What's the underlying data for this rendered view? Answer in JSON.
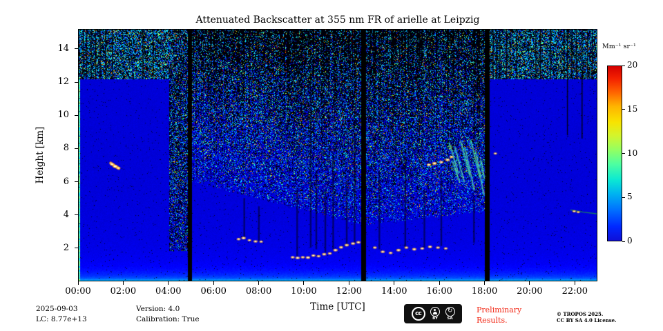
{
  "axes": {
    "x_tick_labels": [
      "00:00",
      "02:00",
      "04:00",
      "06:00",
      "08:00",
      "10:00",
      "12:00",
      "14:00",
      "16:00",
      "18:00",
      "20:00",
      "22:00"
    ],
    "y_tick_labels": [
      "2",
      "4",
      "6",
      "8",
      "10",
      "12",
      "14"
    ]
  },
  "colorbar": {
    "label": "Mm⁻¹ sr⁻¹",
    "tick_labels": [
      "0",
      "5",
      "10",
      "15",
      "20"
    ]
  },
  "footer": {
    "date": "2025-09-03",
    "lc": "LC: 8.77e+13",
    "version": "Version: 4.0",
    "calibration": "Calibration: True",
    "preliminary_line1": "Preliminary",
    "preliminary_line2": "Results.",
    "copyright": "© TROPOS 2025.",
    "license": "CC BY SA 4.0 License.",
    "cc_badge": {
      "cc": "cc",
      "by": "BY",
      "sa": "SA",
      "sa_icon": "↻"
    }
  },
  "chart_data": {
    "type": "heatmap",
    "title": "Attenuated Backscatter at 355 nm FR of arielle at Leipzig",
    "xlabel": "Time [UTC]",
    "ylabel": "Height [km]",
    "x_range_hours": [
      0,
      23
    ],
    "y_range_km": [
      0,
      15.2
    ],
    "x_tick_hours": [
      0,
      2,
      4,
      6,
      8,
      10,
      12,
      14,
      16,
      18,
      20,
      22
    ],
    "y_tick_km": [
      2,
      4,
      6,
      8,
      10,
      12,
      14
    ],
    "colorbar": {
      "label": "Mm⁻¹ sr⁻¹",
      "range": [
        0,
        20
      ],
      "ticks": [
        0,
        5,
        10,
        15,
        20
      ],
      "colormap": "jet"
    },
    "background_value_mm_sr": 0.7,
    "gaps_hours": [
      [
        4.82,
        5.02
      ],
      [
        12.54,
        12.75
      ],
      [
        18.02,
        18.24
      ]
    ],
    "noise_sections": [
      {
        "t0": 0.0,
        "t1": 4.0,
        "base_km": 12.2,
        "style": "dense_top"
      },
      {
        "t0": 4.0,
        "t1": 4.82,
        "base_km": 1.8,
        "style": "column"
      },
      {
        "t0": 5.02,
        "t1": 12.54,
        "base_km": [
          6.0,
          3.4
        ],
        "style": "speckle"
      },
      {
        "t0": 12.75,
        "t1": 18.02,
        "base_km": [
          3.4,
          4.2
        ],
        "style": "speckle"
      },
      {
        "t0": 18.24,
        "t1": 23.0,
        "base_km": 12.2,
        "style": "dense_top"
      }
    ],
    "top_streaks": [
      [
        0.2,
        12.2
      ],
      [
        0.35,
        12.2
      ],
      [
        0.55,
        12.2
      ],
      [
        0.75,
        12.2
      ],
      [
        0.95,
        12.2
      ],
      [
        1.2,
        12.2
      ],
      [
        1.5,
        12.2
      ],
      [
        2.85,
        12.2
      ],
      [
        3.3,
        12.2
      ],
      [
        18.4,
        12.2
      ],
      [
        18.55,
        12.2
      ],
      [
        18.7,
        12.2
      ],
      [
        19.0,
        12.2
      ],
      [
        19.15,
        12.2
      ],
      [
        19.45,
        12.2
      ],
      [
        20.3,
        12.2
      ],
      [
        20.5,
        12.2
      ],
      [
        20.95,
        12.2
      ],
      [
        21.55,
        12.2
      ],
      [
        21.7,
        8.8
      ],
      [
        21.9,
        12.2
      ],
      [
        22.1,
        12.2
      ],
      [
        22.35,
        8.6
      ],
      [
        22.6,
        12.2
      ],
      [
        22.8,
        12.2
      ]
    ],
    "shadow_columns": [
      [
        7.35,
        2.6,
        5.0
      ],
      [
        8.0,
        2.4,
        4.5
      ],
      [
        9.7,
        1.5,
        5.5
      ],
      [
        10.3,
        2.0,
        11.5
      ],
      [
        10.55,
        1.9,
        6.5
      ],
      [
        10.95,
        1.7,
        5.5
      ],
      [
        11.3,
        1.9,
        7.5
      ],
      [
        11.9,
        2.1,
        6.0
      ],
      [
        12.25,
        2.3,
        9.0
      ],
      [
        13.35,
        1.9,
        6.5
      ],
      [
        14.5,
        2.0,
        7.5
      ],
      [
        15.35,
        2.0,
        5.5
      ],
      [
        16.1,
        2.1,
        6.5
      ],
      [
        17.55,
        2.3,
        5.0
      ]
    ],
    "bright_streaks": [
      {
        "pts": [
          [
            1.42,
            7.12
          ],
          [
            1.6,
            6.95
          ],
          [
            1.78,
            6.8
          ]
        ],
        "width": 2.5
      }
    ],
    "virga_segments": [
      [
        16.45,
        8.35,
        16.85,
        6.5
      ],
      [
        16.7,
        8.1,
        17.1,
        6.0
      ],
      [
        16.95,
        8.45,
        17.35,
        6.4
      ],
      [
        17.15,
        8.0,
        17.55,
        5.5
      ],
      [
        17.4,
        8.5,
        17.8,
        6.3
      ],
      [
        17.62,
        7.8,
        17.98,
        5.2
      ],
      [
        16.6,
        7.2,
        16.9,
        6.0
      ],
      [
        17.85,
        7.3,
        18.0,
        6.2
      ]
    ],
    "thin_layer_pts": [
      [
        21.85,
        4.28
      ],
      [
        22.4,
        4.15
      ],
      [
        23.0,
        4.05
      ]
    ],
    "bright_dots": [
      [
        1.48,
        7.05,
        1.8
      ],
      [
        1.62,
        6.92,
        2.2
      ],
      [
        1.76,
        6.82,
        1.6
      ],
      [
        7.1,
        2.52,
        1.5
      ],
      [
        7.32,
        2.58,
        1.8
      ],
      [
        7.58,
        2.45,
        1.4
      ],
      [
        7.85,
        2.38,
        1.6
      ],
      [
        8.1,
        2.36,
        1.3
      ],
      [
        9.5,
        1.42,
        1.5
      ],
      [
        9.72,
        1.38,
        1.7
      ],
      [
        9.95,
        1.42,
        1.5
      ],
      [
        10.18,
        1.4,
        1.8
      ],
      [
        10.42,
        1.52,
        1.6
      ],
      [
        10.65,
        1.48,
        1.5
      ],
      [
        10.9,
        1.6,
        1.7
      ],
      [
        11.15,
        1.65,
        1.5
      ],
      [
        11.4,
        1.85,
        1.8
      ],
      [
        11.65,
        2.02,
        1.6
      ],
      [
        11.9,
        2.15,
        1.7
      ],
      [
        12.18,
        2.25,
        1.8
      ],
      [
        12.42,
        2.32,
        1.6
      ],
      [
        13.15,
        2.0,
        1.5
      ],
      [
        13.5,
        1.75,
        1.7
      ],
      [
        13.85,
        1.68,
        1.5
      ],
      [
        14.2,
        1.85,
        1.8
      ],
      [
        14.55,
        2.0,
        1.5
      ],
      [
        14.9,
        1.9,
        1.7
      ],
      [
        15.25,
        1.95,
        1.5
      ],
      [
        15.6,
        2.05,
        1.6
      ],
      [
        15.95,
        2.0,
        1.5
      ],
      [
        16.3,
        1.95,
        1.4
      ],
      [
        15.55,
        7.02,
        1.8
      ],
      [
        15.8,
        7.1,
        2.0
      ],
      [
        16.1,
        7.18,
        1.7
      ],
      [
        16.38,
        7.32,
        1.9
      ],
      [
        16.55,
        7.5,
        1.5
      ],
      [
        18.5,
        7.7,
        1.3
      ],
      [
        22.0,
        4.2,
        1.3
      ],
      [
        22.18,
        4.15,
        1.2
      ]
    ]
  }
}
